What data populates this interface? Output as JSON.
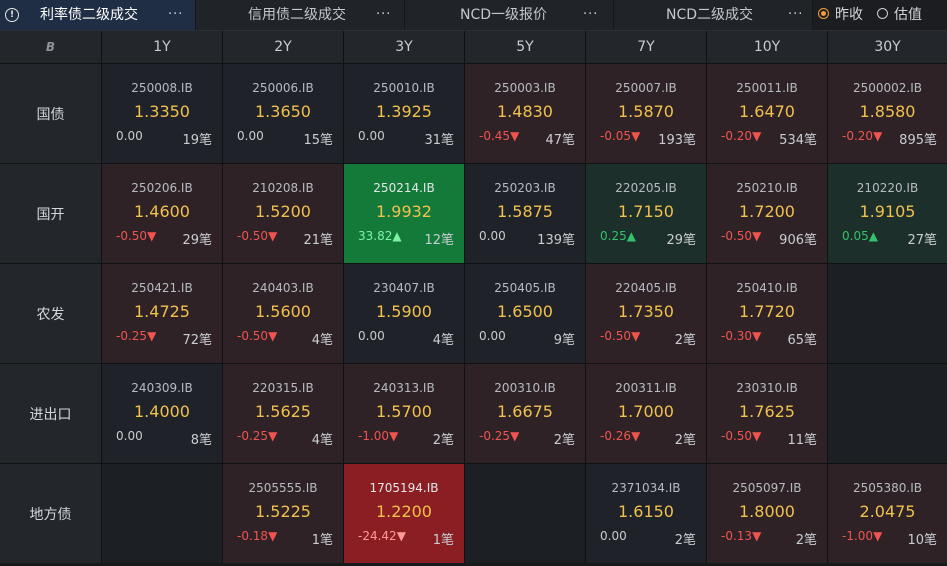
{
  "tabs": [
    {
      "label": "利率债二级成交",
      "more": "···",
      "active": true
    },
    {
      "label": "信用债二级成交",
      "more": "···",
      "active": false
    },
    {
      "label": "NCD一级报价",
      "more": "···",
      "active": false
    },
    {
      "label": "NCD二级成交",
      "more": "···",
      "active": false
    }
  ],
  "info_icon_text": "!",
  "corner_icon_text": "B",
  "radio_options": [
    {
      "label": "昨收",
      "checked": true
    },
    {
      "label": "估值",
      "checked": false
    }
  ],
  "columns": [
    "1Y",
    "2Y",
    "3Y",
    "5Y",
    "7Y",
    "10Y",
    "30Y"
  ],
  "rows": [
    {
      "label": "国债",
      "cells": [
        {
          "code": "250008.IB",
          "yield": "1.3350",
          "change": "0.00",
          "arrow": "",
          "count": "19笔",
          "tone": "neutral"
        },
        {
          "code": "250006.IB",
          "yield": "1.3650",
          "change": "0.00",
          "arrow": "",
          "count": "15笔",
          "tone": "neutral"
        },
        {
          "code": "250010.IB",
          "yield": "1.3925",
          "change": "0.00",
          "arrow": "",
          "count": "31笔",
          "tone": "neutral"
        },
        {
          "code": "250003.IB",
          "yield": "1.4830",
          "change": "-0.45",
          "arrow": "▼",
          "count": "47笔",
          "tone": "up"
        },
        {
          "code": "250007.IB",
          "yield": "1.5870",
          "change": "-0.05",
          "arrow": "▼",
          "count": "193笔",
          "tone": "up"
        },
        {
          "code": "250011.IB",
          "yield": "1.6470",
          "change": "-0.20",
          "arrow": "▼",
          "count": "534笔",
          "tone": "up"
        },
        {
          "code": "2500002.IB",
          "yield": "1.8580",
          "change": "-0.20",
          "arrow": "▼",
          "count": "895笔",
          "tone": "up"
        }
      ]
    },
    {
      "label": "国开",
      "cells": [
        {
          "code": "250206.IB",
          "yield": "1.4600",
          "change": "-0.50",
          "arrow": "▼",
          "count": "29笔",
          "tone": "up"
        },
        {
          "code": "210208.IB",
          "yield": "1.5200",
          "change": "-0.50",
          "arrow": "▼",
          "count": "21笔",
          "tone": "up"
        },
        {
          "code": "250214.IB",
          "yield": "1.9932",
          "change": "33.82",
          "arrow": "▲",
          "count": "12笔",
          "tone": "strong-down"
        },
        {
          "code": "250203.IB",
          "yield": "1.5875",
          "change": "0.00",
          "arrow": "",
          "count": "139笔",
          "tone": "neutral"
        },
        {
          "code": "220205.IB",
          "yield": "1.7150",
          "change": "0.25",
          "arrow": "▲",
          "count": "29笔",
          "tone": "down"
        },
        {
          "code": "250210.IB",
          "yield": "1.7200",
          "change": "-0.50",
          "arrow": "▼",
          "count": "906笔",
          "tone": "up"
        },
        {
          "code": "210220.IB",
          "yield": "1.9105",
          "change": "0.05",
          "arrow": "▲",
          "count": "27笔",
          "tone": "down"
        }
      ]
    },
    {
      "label": "农发",
      "cells": [
        {
          "code": "250421.IB",
          "yield": "1.4725",
          "change": "-0.25",
          "arrow": "▼",
          "count": "72笔",
          "tone": "up"
        },
        {
          "code": "240403.IB",
          "yield": "1.5600",
          "change": "-0.50",
          "arrow": "▼",
          "count": "4笔",
          "tone": "up"
        },
        {
          "code": "230407.IB",
          "yield": "1.5900",
          "change": "0.00",
          "arrow": "",
          "count": "4笔",
          "tone": "neutral"
        },
        {
          "code": "250405.IB",
          "yield": "1.6500",
          "change": "0.00",
          "arrow": "",
          "count": "9笔",
          "tone": "neutral"
        },
        {
          "code": "220405.IB",
          "yield": "1.7350",
          "change": "-0.50",
          "arrow": "▼",
          "count": "2笔",
          "tone": "up"
        },
        {
          "code": "250410.IB",
          "yield": "1.7720",
          "change": "-0.30",
          "arrow": "▼",
          "count": "65笔",
          "tone": "up"
        },
        null
      ]
    },
    {
      "label": "进出口",
      "cells": [
        {
          "code": "240309.IB",
          "yield": "1.4000",
          "change": "0.00",
          "arrow": "",
          "count": "8笔",
          "tone": "neutral"
        },
        {
          "code": "220315.IB",
          "yield": "1.5625",
          "change": "-0.25",
          "arrow": "▼",
          "count": "4笔",
          "tone": "up"
        },
        {
          "code": "240313.IB",
          "yield": "1.5700",
          "change": "-1.00",
          "arrow": "▼",
          "count": "2笔",
          "tone": "up"
        },
        {
          "code": "200310.IB",
          "yield": "1.6675",
          "change": "-0.25",
          "arrow": "▼",
          "count": "2笔",
          "tone": "up"
        },
        {
          "code": "200311.IB",
          "yield": "1.7000",
          "change": "-0.26",
          "arrow": "▼",
          "count": "2笔",
          "tone": "up"
        },
        {
          "code": "230310.IB",
          "yield": "1.7625",
          "change": "-0.50",
          "arrow": "▼",
          "count": "11笔",
          "tone": "up"
        },
        null
      ]
    },
    {
      "label": "地方债",
      "cells": [
        null,
        {
          "code": "2505555.IB",
          "yield": "1.5225",
          "change": "-0.18",
          "arrow": "▼",
          "count": "1笔",
          "tone": "up"
        },
        {
          "code": "1705194.IB",
          "yield": "1.2200",
          "change": "-24.42",
          "arrow": "▼",
          "count": "1笔",
          "tone": "strong-up"
        },
        null,
        {
          "code": "2371034.IB",
          "yield": "1.6150",
          "change": "0.00",
          "arrow": "",
          "count": "2笔",
          "tone": "neutral"
        },
        {
          "code": "2505097.IB",
          "yield": "1.8000",
          "change": "-0.13",
          "arrow": "▼",
          "count": "2笔",
          "tone": "up"
        },
        {
          "code": "2505380.IB",
          "yield": "2.0475",
          "change": "-1.00",
          "arrow": "▼",
          "count": "10笔",
          "tone": "up"
        }
      ]
    }
  ],
  "colors": {
    "yield_text": "#f1c14e",
    "negative_change": "#f0544f",
    "positive_change": "#34c26a",
    "active_tab_bg": "#1f2e44",
    "radio_accent": "#f29a3c"
  }
}
